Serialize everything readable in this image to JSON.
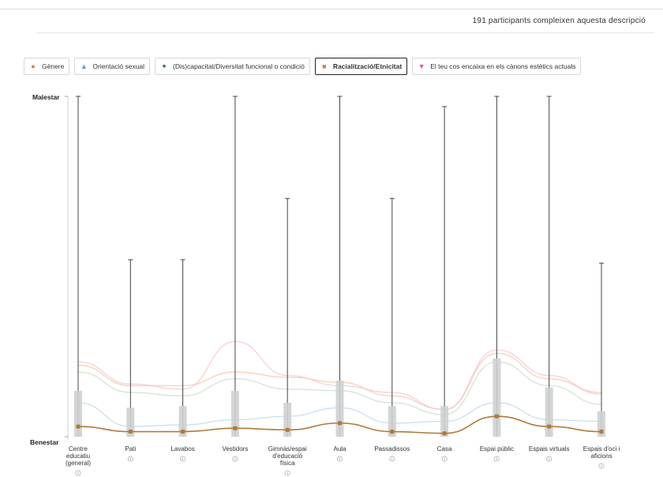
{
  "header": {
    "participants_text": "191 participants compleixen aquesta descripció"
  },
  "legend": [
    {
      "label": "Gènere",
      "marker": "●",
      "color": "#e07b39",
      "active": false
    },
    {
      "label": "Orientació sexual",
      "marker": "▲",
      "color": "#5b9bd5",
      "active": false
    },
    {
      "label": "(Dis)capacitat/Diversitat funcional o condició",
      "marker": "✦",
      "color": "#2e6b3a",
      "active": false
    },
    {
      "label": "Racialització/Etnicitat",
      "marker": "■",
      "color": "#c08840",
      "active": true
    },
    {
      "label": "El teu cos encaixa en els cànons estètics actuals",
      "marker": "▼",
      "color": "#e06070",
      "active": false
    }
  ],
  "chart_data": {
    "type": "box",
    "y_top_label": "Malestar",
    "y_bottom_label": "Benestar",
    "ylim": [
      0,
      10
    ],
    "categories": [
      "Centre educatiu (general)",
      "Pati",
      "Lavabos",
      "Vestidors",
      "Gimnàs/espai d'educació física",
      "Aula",
      "Passadissos",
      "Casa",
      "Espai públic",
      "Espais virtuals",
      "Espais d'oci i aficions"
    ],
    "category_lines": [
      [
        "Centre",
        "educatiu",
        "(general)"
      ],
      [
        "Pati"
      ],
      [
        "Lavabos"
      ],
      [
        "Vestidors"
      ],
      [
        "Gimnàs/espai",
        "d'educació",
        "física"
      ],
      [
        "Aula"
      ],
      [
        "Passadissos"
      ],
      [
        "Casa"
      ],
      [
        "Espai públic"
      ],
      [
        "Espais virtuals"
      ],
      [
        "Espais d'oci i",
        "aficions"
      ]
    ],
    "whisker_max": [
      10,
      5.2,
      5.2,
      10,
      7.0,
      10,
      7.0,
      9.7,
      10,
      10,
      5.1
    ],
    "q3": [
      1.35,
      0.85,
      0.9,
      1.35,
      1.0,
      1.65,
      0.9,
      0.9,
      2.3,
      1.45,
      0.75
    ],
    "q1": [
      0,
      0,
      0,
      0,
      0,
      0,
      0,
      0,
      0,
      0,
      0
    ],
    "series": [
      {
        "name": "Racialització/Etnicitat",
        "color": "#b07a3a",
        "values": [
          0.3,
          0.15,
          0.15,
          0.25,
          0.2,
          0.4,
          0.15,
          0.1,
          0.6,
          0.3,
          0.15
        ]
      },
      {
        "name": "Gènere",
        "color": "#f2c5a8",
        "values": [
          2.1,
          1.5,
          1.5,
          1.9,
          1.75,
          1.6,
          1.2,
          0.8,
          2.45,
          1.7,
          1.3
        ]
      },
      {
        "name": "El teu cos encaixa en els cànons estètics actuals",
        "color": "#f4c4cf",
        "values": [
          2.2,
          1.55,
          1.4,
          2.8,
          1.8,
          1.5,
          1.3,
          0.8,
          2.55,
          1.8,
          1.25
        ]
      },
      {
        "name": "Orientació sexual",
        "color": "#bcd5ec",
        "values": [
          1.0,
          0.3,
          0.35,
          0.5,
          0.6,
          0.85,
          0.4,
          0.45,
          1.0,
          0.5,
          0.45
        ]
      },
      {
        "name": "(Dis)capacitat/Diversitat funcional o condició",
        "color": "#c9dcc9",
        "values": [
          1.9,
          1.3,
          1.2,
          1.7,
          1.4,
          1.35,
          1.0,
          0.65,
          2.2,
          1.5,
          0.95
        ]
      }
    ]
  }
}
